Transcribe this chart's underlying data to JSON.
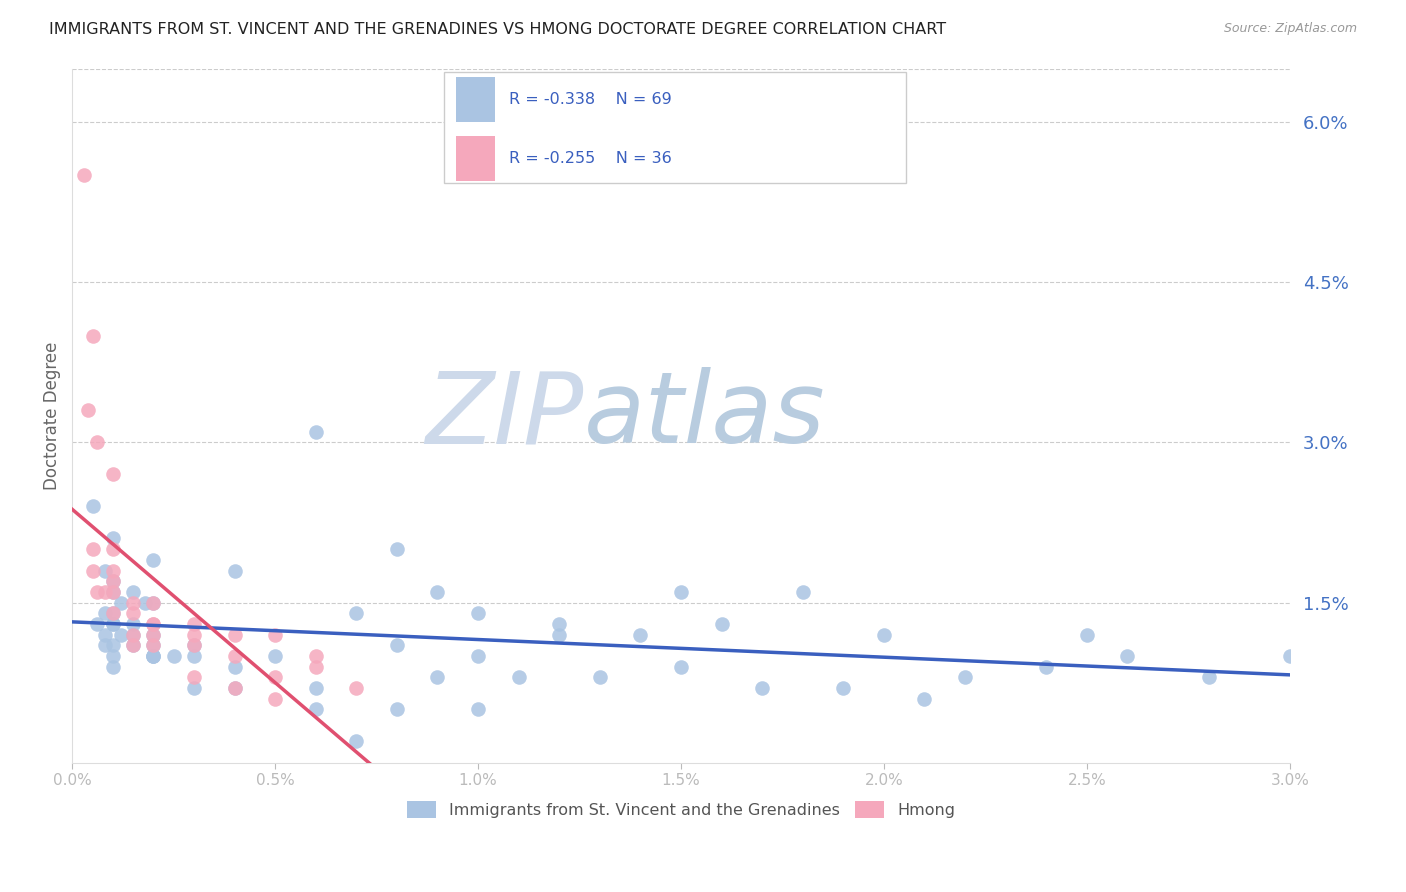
{
  "title": "IMMIGRANTS FROM ST. VINCENT AND THE GRENADINES VS HMONG DOCTORATE DEGREE CORRELATION CHART",
  "source": "Source: ZipAtlas.com",
  "ylabel": "Doctorate Degree",
  "right_ytick_labels": [
    "1.5%",
    "3.0%",
    "4.5%",
    "6.0%"
  ],
  "right_ytick_values": [
    0.015,
    0.03,
    0.045,
    0.06
  ],
  "xmin": 0.0,
  "xmax": 0.03,
  "ymin": 0.0,
  "ymax": 0.065,
  "xtick_labels": [
    "0.0%",
    "0.5%",
    "1.0%",
    "1.5%",
    "2.0%",
    "2.5%",
    "3.0%"
  ],
  "xtick_values": [
    0.0,
    0.005,
    0.01,
    0.015,
    0.02,
    0.025,
    0.03
  ],
  "legend_blue_r": "R = -0.338",
  "legend_blue_n": "N = 69",
  "legend_pink_r": "R = -0.255",
  "legend_pink_n": "N = 36",
  "blue_color": "#aac4e2",
  "pink_color": "#f5a8bc",
  "blue_line_color": "#3a5fbf",
  "pink_line_color": "#e05070",
  "watermark_zip": "ZIP",
  "watermark_atlas": "atlas",
  "watermark_color_zip": "#d0dff0",
  "watermark_color_atlas": "#c8d8e8",
  "legend_label_blue": "Immigrants from St. Vincent and the Grenadines",
  "legend_label_pink": "Hmong",
  "blue_scatter_x": [
    0.0005,
    0.001,
    0.0008,
    0.001,
    0.0015,
    0.001,
    0.0012,
    0.0018,
    0.002,
    0.0008,
    0.001,
    0.0006,
    0.001,
    0.0015,
    0.001,
    0.0012,
    0.0008,
    0.002,
    0.0015,
    0.001,
    0.0008,
    0.0015,
    0.002,
    0.003,
    0.0025,
    0.002,
    0.002,
    0.003,
    0.001,
    0.002,
    0.001,
    0.004,
    0.006,
    0.007,
    0.008,
    0.009,
    0.01,
    0.012,
    0.015,
    0.018,
    0.02,
    0.022,
    0.024,
    0.025,
    0.026,
    0.028,
    0.03,
    0.008,
    0.01,
    0.012,
    0.014,
    0.016,
    0.005,
    0.007,
    0.009,
    0.011,
    0.013,
    0.015,
    0.017,
    0.019,
    0.021,
    0.003,
    0.004,
    0.006,
    0.008,
    0.01,
    0.002,
    0.004,
    0.006
  ],
  "blue_scatter_y": [
    0.024,
    0.021,
    0.018,
    0.017,
    0.016,
    0.016,
    0.015,
    0.015,
    0.015,
    0.014,
    0.014,
    0.013,
    0.013,
    0.013,
    0.013,
    0.012,
    0.012,
    0.012,
    0.012,
    0.011,
    0.011,
    0.011,
    0.011,
    0.011,
    0.01,
    0.01,
    0.01,
    0.01,
    0.01,
    0.01,
    0.009,
    0.009,
    0.031,
    0.014,
    0.02,
    0.016,
    0.01,
    0.012,
    0.016,
    0.016,
    0.012,
    0.008,
    0.009,
    0.012,
    0.01,
    0.008,
    0.01,
    0.011,
    0.014,
    0.013,
    0.012,
    0.013,
    0.01,
    0.002,
    0.008,
    0.008,
    0.008,
    0.009,
    0.007,
    0.007,
    0.006,
    0.007,
    0.007,
    0.007,
    0.005,
    0.005,
    0.019,
    0.018,
    0.005
  ],
  "pink_scatter_x": [
    0.0003,
    0.0005,
    0.0004,
    0.0006,
    0.001,
    0.0005,
    0.001,
    0.0005,
    0.001,
    0.001,
    0.0006,
    0.0008,
    0.001,
    0.0015,
    0.002,
    0.001,
    0.0015,
    0.002,
    0.002,
    0.0015,
    0.003,
    0.002,
    0.003,
    0.0015,
    0.002,
    0.003,
    0.004,
    0.005,
    0.004,
    0.006,
    0.003,
    0.005,
    0.006,
    0.007,
    0.004,
    0.005
  ],
  "pink_scatter_y": [
    0.055,
    0.04,
    0.033,
    0.03,
    0.027,
    0.02,
    0.02,
    0.018,
    0.018,
    0.017,
    0.016,
    0.016,
    0.016,
    0.015,
    0.015,
    0.014,
    0.014,
    0.013,
    0.012,
    0.012,
    0.013,
    0.013,
    0.012,
    0.011,
    0.011,
    0.011,
    0.012,
    0.012,
    0.01,
    0.01,
    0.008,
    0.008,
    0.009,
    0.007,
    0.007,
    0.006
  ],
  "pink_line_xmax": 0.0075
}
